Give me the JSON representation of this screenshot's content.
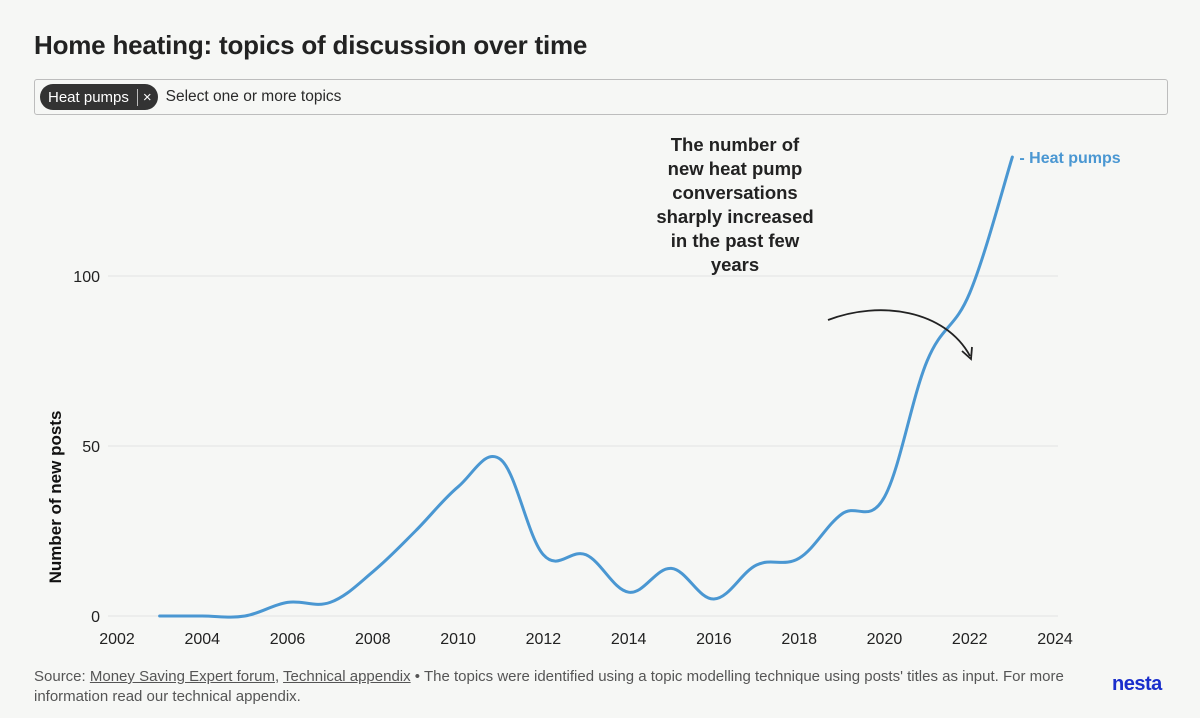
{
  "header": {
    "title": "Home heating: topics of discussion over time"
  },
  "selector": {
    "chip_label": "Heat pumps",
    "chip_close": "×",
    "placeholder": "Select one or more topics"
  },
  "colors": {
    "series": "#4a97d2",
    "brand": "#1a2ecc"
  },
  "chart_data": {
    "type": "line",
    "title": "",
    "xlabel": "",
    "ylabel": "Number of new posts",
    "xlim": [
      2002,
      2024
    ],
    "ylim": [
      0,
      135
    ],
    "xticks": [
      2002,
      2004,
      2006,
      2008,
      2010,
      2012,
      2014,
      2016,
      2018,
      2020,
      2022,
      2024
    ],
    "yticks": [
      0,
      50,
      100
    ],
    "grid": true,
    "series": [
      {
        "name": "Heat pumps",
        "label": "- Heat pumps",
        "x": [
          2003,
          2004,
          2005,
          2006,
          2007,
          2008,
          2009,
          2010,
          2011,
          2012,
          2013,
          2014,
          2015,
          2016,
          2017,
          2018,
          2019,
          2020,
          2021,
          2022,
          2023
        ],
        "y": [
          0,
          0,
          0,
          4,
          4,
          13,
          25,
          38,
          46,
          18,
          18,
          7,
          14,
          5,
          15,
          17,
          30,
          35,
          75,
          95,
          135
        ]
      }
    ],
    "annotations": [
      {
        "lines": [
          "The number of",
          "new heat pump",
          "conversations",
          "sharply increased",
          "in the past few",
          "years"
        ]
      }
    ]
  },
  "footer": {
    "source_prefix": "Source: ",
    "link1": "Money Saving Expert forum",
    "comma": ", ",
    "link2": "Technical appendix",
    "text": " • The topics were identified using a topic modelling technique using posts' titles as input. For more information read our technical appendix."
  },
  "brand": "nesta"
}
